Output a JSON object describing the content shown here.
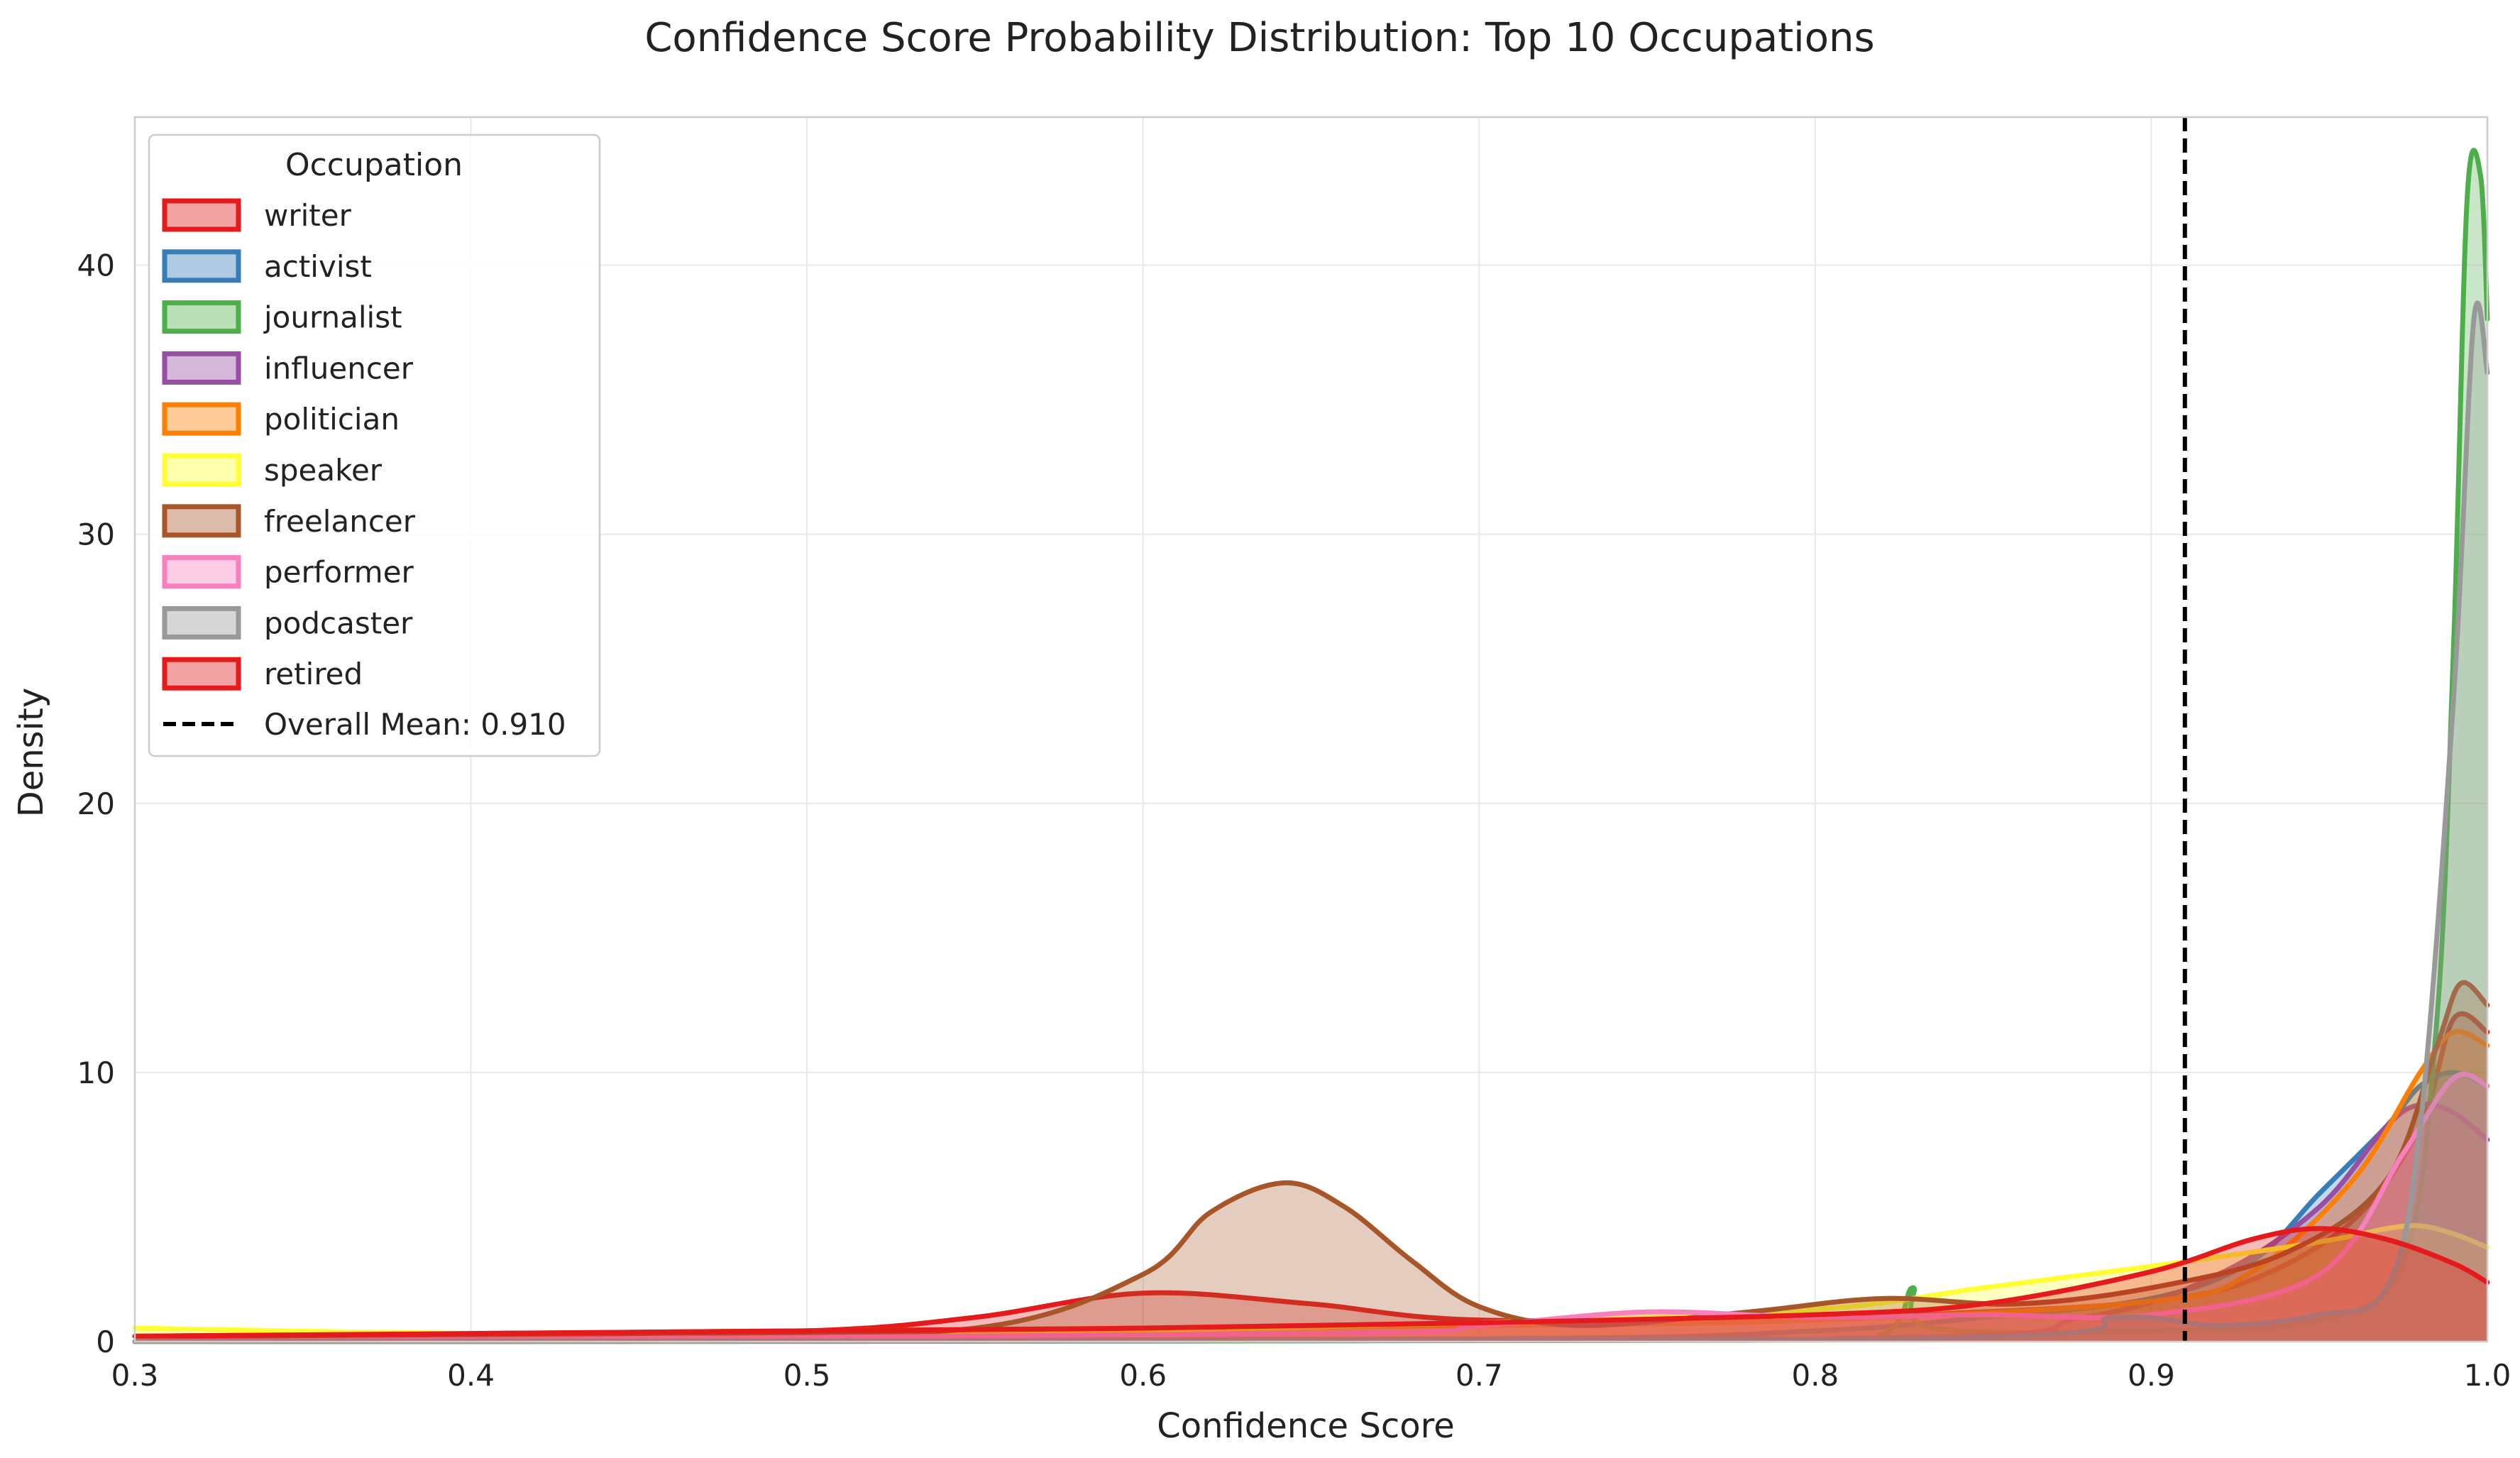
{
  "chart_data": {
    "type": "area",
    "title": "Confidence Score Probability Distribution: Top 10 Occupations",
    "xlabel": "Confidence Score",
    "ylabel": "Density",
    "xlim": [
      0.3,
      1.0
    ],
    "ylim": [
      0,
      45.5
    ],
    "xticks": [
      0.3,
      0.4,
      0.5,
      0.6,
      0.7,
      0.8,
      0.9,
      1.0
    ],
    "xtick_labels": [
      "0.3",
      "0.4",
      "0.5",
      "0.6",
      "0.7",
      "0.8",
      "0.9",
      "1.0"
    ],
    "yticks": [
      0,
      10,
      20,
      30,
      40
    ],
    "ytick_labels": [
      "0",
      "10",
      "20",
      "30",
      "40"
    ],
    "grid": true,
    "legend": {
      "title": "Occupation",
      "position": "top-left",
      "mean_label": "Overall Mean: 0.910"
    },
    "mean_line": {
      "x": 0.91
    },
    "series": [
      {
        "name": "writer",
        "color": "#e41a1c",
        "points": [
          [
            0.3,
            0.2
          ],
          [
            0.4,
            0.3
          ],
          [
            0.5,
            0.4
          ],
          [
            0.55,
            0.9
          ],
          [
            0.6,
            1.8
          ],
          [
            0.65,
            1.4
          ],
          [
            0.7,
            0.8
          ],
          [
            0.8,
            0.9
          ],
          [
            0.85,
            1.1
          ],
          [
            0.9,
            1.5
          ],
          [
            0.93,
            2.3
          ],
          [
            0.96,
            4.5
          ],
          [
            0.98,
            8.0
          ],
          [
            0.99,
            12.0
          ],
          [
            1.0,
            11.5
          ]
        ]
      },
      {
        "name": "activist",
        "color": "#377eb8",
        "points": [
          [
            0.3,
            0.0
          ],
          [
            0.7,
            0.1
          ],
          [
            0.8,
            0.4
          ],
          [
            0.85,
            0.9
          ],
          [
            0.9,
            1.6
          ],
          [
            0.93,
            3.0
          ],
          [
            0.95,
            5.5
          ],
          [
            0.97,
            8.0
          ],
          [
            0.98,
            9.5
          ],
          [
            0.99,
            10.0
          ],
          [
            1.0,
            9.5
          ]
        ]
      },
      {
        "name": "journalist",
        "color": "#4daf4a",
        "points": [
          [
            0.3,
            0.0
          ],
          [
            0.78,
            0.05
          ],
          [
            0.82,
            0.3
          ],
          [
            0.829,
            2.0
          ],
          [
            0.835,
            0.5
          ],
          [
            0.9,
            0.4
          ],
          [
            0.95,
            0.8
          ],
          [
            0.975,
            3.0
          ],
          [
            0.985,
            12.0
          ],
          [
            0.99,
            26.0
          ],
          [
            0.994,
            42.5
          ],
          [
            0.998,
            43.3
          ],
          [
            1.0,
            38.0
          ]
        ]
      },
      {
        "name": "influencer",
        "color": "#984ea3",
        "points": [
          [
            0.3,
            0.0
          ],
          [
            0.8,
            0.1
          ],
          [
            0.88,
            0.9
          ],
          [
            0.92,
            2.5
          ],
          [
            0.95,
            5.0
          ],
          [
            0.97,
            8.0
          ],
          [
            0.98,
            8.8
          ],
          [
            0.99,
            8.5
          ],
          [
            1.0,
            7.5
          ]
        ]
      },
      {
        "name": "politician",
        "color": "#ff7f00",
        "points": [
          [
            0.3,
            0.2
          ],
          [
            0.5,
            0.4
          ],
          [
            0.6,
            0.5
          ],
          [
            0.7,
            0.6
          ],
          [
            0.8,
            0.8
          ],
          [
            0.9,
            1.5
          ],
          [
            0.93,
            2.6
          ],
          [
            0.96,
            6.0
          ],
          [
            0.98,
            10.0
          ],
          [
            0.99,
            11.5
          ],
          [
            1.0,
            11.0
          ]
        ]
      },
      {
        "name": "speaker",
        "color": "#ffff33",
        "points": [
          [
            0.3,
            0.5
          ],
          [
            0.4,
            0.3
          ],
          [
            0.5,
            0.3
          ],
          [
            0.6,
            0.4
          ],
          [
            0.7,
            0.7
          ],
          [
            0.8,
            1.2
          ],
          [
            0.85,
            2.0
          ],
          [
            0.9,
            2.8
          ],
          [
            0.95,
            3.7
          ],
          [
            0.97,
            4.2
          ],
          [
            0.98,
            4.3
          ],
          [
            0.99,
            4.0
          ],
          [
            1.0,
            3.5
          ]
        ]
      },
      {
        "name": "freelancer",
        "color": "#a65628",
        "points": [
          [
            0.3,
            0.0
          ],
          [
            0.45,
            0.3
          ],
          [
            0.55,
            0.5
          ],
          [
            0.6,
            2.5
          ],
          [
            0.62,
            4.8
          ],
          [
            0.642,
            5.9
          ],
          [
            0.66,
            5.0
          ],
          [
            0.68,
            3.0
          ],
          [
            0.7,
            1.3
          ],
          [
            0.73,
            0.6
          ],
          [
            0.78,
            1.1
          ],
          [
            0.82,
            1.6
          ],
          [
            0.86,
            1.4
          ],
          [
            0.9,
            2.0
          ],
          [
            0.94,
            3.3
          ],
          [
            0.97,
            6.0
          ],
          [
            0.985,
            11.0
          ],
          [
            0.992,
            13.3
          ],
          [
            1.0,
            12.5
          ]
        ]
      },
      {
        "name": "performer",
        "color": "#f781bf",
        "points": [
          [
            0.3,
            0.0
          ],
          [
            0.65,
            0.3
          ],
          [
            0.7,
            0.6
          ],
          [
            0.75,
            1.1
          ],
          [
            0.8,
            0.9
          ],
          [
            0.85,
            1.0
          ],
          [
            0.9,
            1.0
          ],
          [
            0.95,
            2.5
          ],
          [
            0.975,
            7.0
          ],
          [
            0.99,
            9.8
          ],
          [
            1.0,
            9.5
          ]
        ]
      },
      {
        "name": "podcaster",
        "color": "#999999",
        "points": [
          [
            0.3,
            0.0
          ],
          [
            0.82,
            0.1
          ],
          [
            0.89,
            0.9
          ],
          [
            0.92,
            0.6
          ],
          [
            0.95,
            1.0
          ],
          [
            0.97,
            2.0
          ],
          [
            0.98,
            8.0
          ],
          [
            0.99,
            24.0
          ],
          [
            0.996,
            38.0
          ],
          [
            1.0,
            36.0
          ]
        ]
      },
      {
        "name": "retired",
        "color": "#e41a1c",
        "points": [
          [
            0.3,
            0.2
          ],
          [
            0.4,
            0.3
          ],
          [
            0.5,
            0.4
          ],
          [
            0.6,
            0.5
          ],
          [
            0.7,
            0.7
          ],
          [
            0.8,
            1.0
          ],
          [
            0.85,
            1.4
          ],
          [
            0.9,
            2.6
          ],
          [
            0.93,
            3.8
          ],
          [
            0.95,
            4.2
          ],
          [
            0.97,
            3.8
          ],
          [
            0.99,
            2.9
          ],
          [
            1.0,
            2.2
          ]
        ]
      }
    ]
  }
}
